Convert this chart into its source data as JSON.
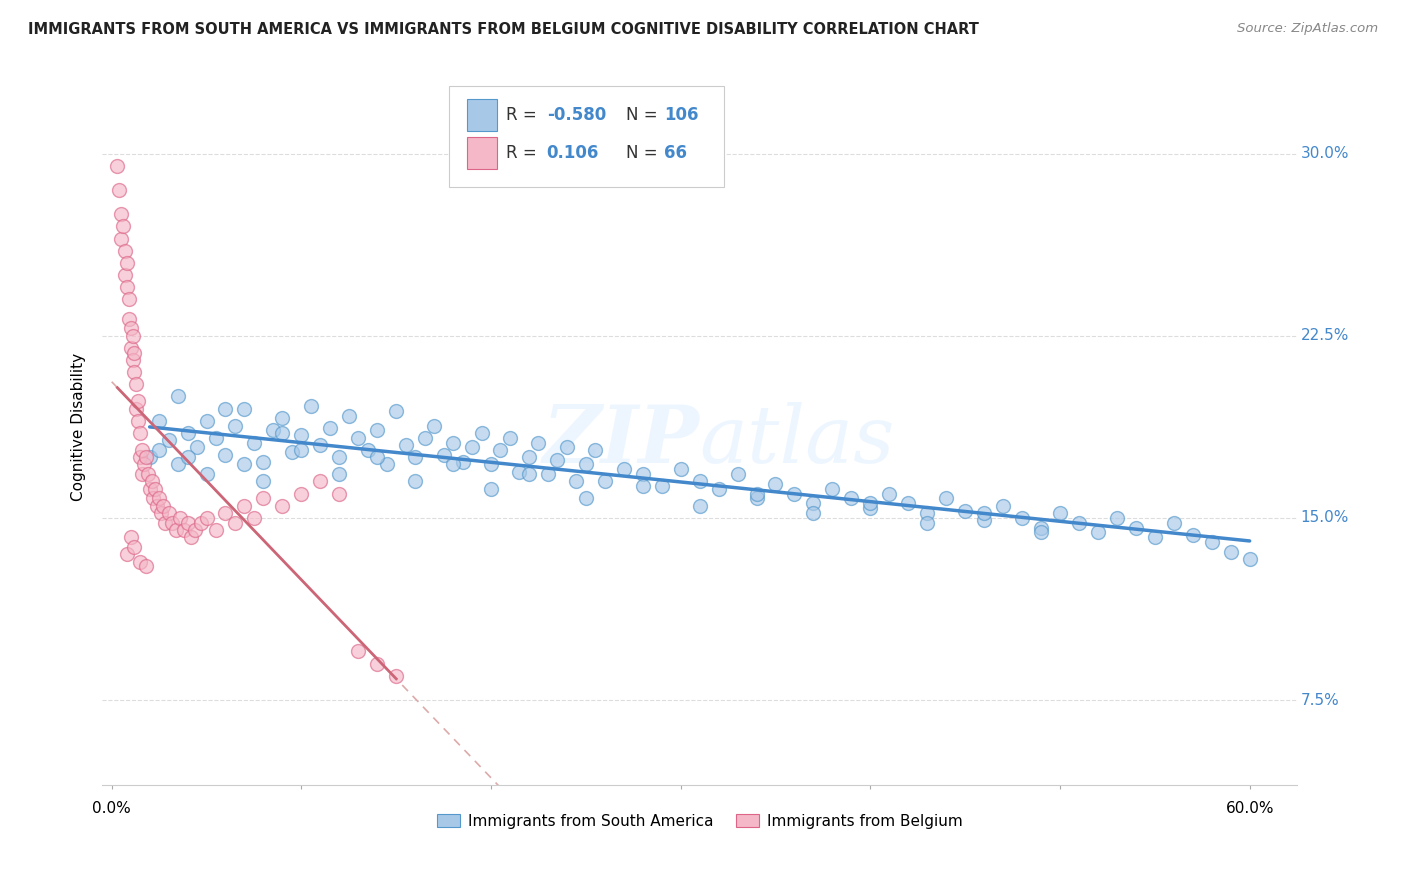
{
  "title": "IMMIGRANTS FROM SOUTH AMERICA VS IMMIGRANTS FROM BELGIUM COGNITIVE DISABILITY CORRELATION CHART",
  "source": "Source: ZipAtlas.com",
  "ylabel": "Cognitive Disability",
  "yticks": [
    0.075,
    0.15,
    0.225,
    0.3
  ],
  "ytick_labels": [
    "7.5%",
    "15.0%",
    "22.5%",
    "30.0%"
  ],
  "xlim": [
    -0.005,
    0.625
  ],
  "ylim": [
    0.04,
    0.335
  ],
  "blue_color": "#a8c8e8",
  "pink_color": "#f4b8c8",
  "blue_edge_color": "#5599cc",
  "pink_edge_color": "#dd6688",
  "blue_line_color": "#4488cc",
  "pink_line_color": "#cc6677",
  "dashed_color": "#ddaaaa",
  "watermark": "ZIPatlas",
  "background_color": "#ffffff",
  "grid_color": "#dddddd",
  "blue_scatter_x": [
    0.02,
    0.025,
    0.03,
    0.035,
    0.04,
    0.045,
    0.05,
    0.055,
    0.06,
    0.065,
    0.07,
    0.075,
    0.08,
    0.085,
    0.09,
    0.095,
    0.1,
    0.105,
    0.11,
    0.115,
    0.12,
    0.125,
    0.13,
    0.135,
    0.14,
    0.145,
    0.15,
    0.155,
    0.16,
    0.165,
    0.17,
    0.175,
    0.18,
    0.185,
    0.19,
    0.195,
    0.2,
    0.205,
    0.21,
    0.215,
    0.22,
    0.225,
    0.23,
    0.235,
    0.24,
    0.245,
    0.25,
    0.255,
    0.26,
    0.27,
    0.28,
    0.29,
    0.3,
    0.31,
    0.32,
    0.33,
    0.34,
    0.35,
    0.36,
    0.37,
    0.38,
    0.39,
    0.4,
    0.41,
    0.42,
    0.43,
    0.44,
    0.45,
    0.46,
    0.47,
    0.48,
    0.49,
    0.5,
    0.51,
    0.52,
    0.53,
    0.54,
    0.55,
    0.56,
    0.57,
    0.58,
    0.59,
    0.6,
    0.025,
    0.035,
    0.04,
    0.05,
    0.06,
    0.07,
    0.08,
    0.09,
    0.1,
    0.12,
    0.14,
    0.16,
    0.18,
    0.2,
    0.22,
    0.25,
    0.28,
    0.31,
    0.34,
    0.37,
    0.4,
    0.43,
    0.46,
    0.49
  ],
  "blue_scatter_y": [
    0.175,
    0.178,
    0.182,
    0.172,
    0.185,
    0.179,
    0.19,
    0.183,
    0.176,
    0.188,
    0.195,
    0.181,
    0.173,
    0.186,
    0.191,
    0.177,
    0.184,
    0.196,
    0.18,
    0.187,
    0.175,
    0.192,
    0.183,
    0.178,
    0.186,
    0.172,
    0.194,
    0.18,
    0.175,
    0.183,
    0.188,
    0.176,
    0.181,
    0.173,
    0.179,
    0.185,
    0.172,
    0.178,
    0.183,
    0.169,
    0.175,
    0.181,
    0.168,
    0.174,
    0.179,
    0.165,
    0.172,
    0.178,
    0.165,
    0.17,
    0.168,
    0.163,
    0.17,
    0.165,
    0.162,
    0.168,
    0.158,
    0.164,
    0.16,
    0.156,
    0.162,
    0.158,
    0.154,
    0.16,
    0.156,
    0.152,
    0.158,
    0.153,
    0.149,
    0.155,
    0.15,
    0.146,
    0.152,
    0.148,
    0.144,
    0.15,
    0.146,
    0.142,
    0.148,
    0.143,
    0.14,
    0.136,
    0.133,
    0.19,
    0.2,
    0.175,
    0.168,
    0.195,
    0.172,
    0.165,
    0.185,
    0.178,
    0.168,
    0.175,
    0.165,
    0.172,
    0.162,
    0.168,
    0.158,
    0.163,
    0.155,
    0.16,
    0.152,
    0.156,
    0.148,
    0.152,
    0.144
  ],
  "pink_scatter_x": [
    0.003,
    0.004,
    0.005,
    0.005,
    0.006,
    0.007,
    0.007,
    0.008,
    0.008,
    0.009,
    0.009,
    0.01,
    0.01,
    0.011,
    0.011,
    0.012,
    0.012,
    0.013,
    0.013,
    0.014,
    0.014,
    0.015,
    0.015,
    0.016,
    0.016,
    0.017,
    0.018,
    0.019,
    0.02,
    0.021,
    0.022,
    0.023,
    0.024,
    0.025,
    0.026,
    0.027,
    0.028,
    0.03,
    0.032,
    0.034,
    0.036,
    0.038,
    0.04,
    0.042,
    0.044,
    0.047,
    0.05,
    0.055,
    0.06,
    0.065,
    0.07,
    0.075,
    0.08,
    0.09,
    0.1,
    0.11,
    0.12,
    0.13,
    0.14,
    0.15,
    0.008,
    0.01,
    0.012,
    0.015,
    0.018
  ],
  "pink_scatter_y": [
    0.295,
    0.285,
    0.275,
    0.265,
    0.27,
    0.26,
    0.25,
    0.255,
    0.245,
    0.24,
    0.232,
    0.228,
    0.22,
    0.225,
    0.215,
    0.218,
    0.21,
    0.205,
    0.195,
    0.198,
    0.19,
    0.185,
    0.175,
    0.178,
    0.168,
    0.172,
    0.175,
    0.168,
    0.162,
    0.165,
    0.158,
    0.162,
    0.155,
    0.158,
    0.152,
    0.155,
    0.148,
    0.152,
    0.148,
    0.145,
    0.15,
    0.145,
    0.148,
    0.142,
    0.145,
    0.148,
    0.15,
    0.145,
    0.152,
    0.148,
    0.155,
    0.15,
    0.158,
    0.155,
    0.16,
    0.165,
    0.16,
    0.095,
    0.09,
    0.085,
    0.135,
    0.142,
    0.138,
    0.132,
    0.13
  ]
}
